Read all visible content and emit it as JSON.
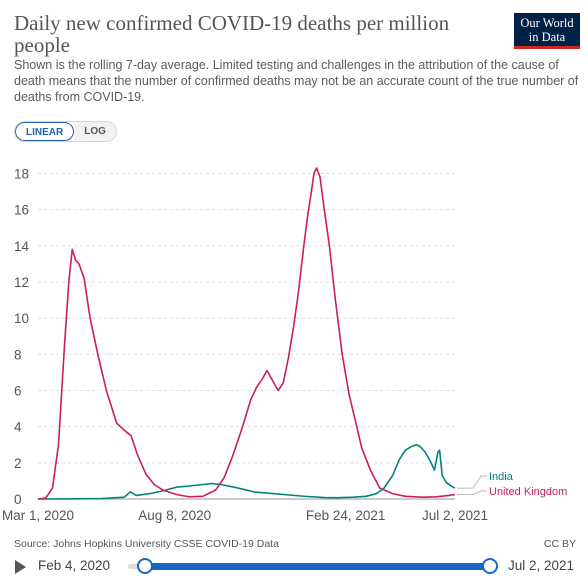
{
  "header": {
    "title": "Daily new confirmed COVID-19 deaths per million people",
    "subtitle": "Shown is the rolling 7-day average. Limited testing and challenges in the attribution of the cause of death means that the number of confirmed deaths may not be an accurate count of the true number of deaths from COVID-19.",
    "logo_line1": "Our World",
    "logo_line2": "in Data"
  },
  "scale_toggle": {
    "linear": "LINEAR",
    "log": "LOG",
    "selected": "LINEAR"
  },
  "footer": {
    "source": "Source: Johns Hopkins University CSSE COVID-19 Data",
    "license": "CC BY"
  },
  "timeline": {
    "start": "Feb 4, 2020",
    "end": "Jul 2, 2021"
  },
  "colors": {
    "india": "#00847e",
    "uk": "#c91f5c",
    "grid": "#dddddd"
  },
  "chart_data": {
    "type": "line",
    "title": "Daily new confirmed COVID-19 deaths per million people",
    "xlabel": "",
    "ylabel": "",
    "x_range": [
      "2020-03-01",
      "2021-07-02"
    ],
    "ylim": [
      0,
      18.5
    ],
    "y_ticks": [
      0,
      2,
      4,
      6,
      8,
      10,
      12,
      14,
      16,
      18
    ],
    "x_ticks": [
      {
        "date": "2020-03-01",
        "label": "Mar 1, 2020"
      },
      {
        "date": "2020-08-08",
        "label": "Aug 8, 2020"
      },
      {
        "date": "2021-02-24",
        "label": "Feb 24, 2021"
      },
      {
        "date": "2021-07-02",
        "label": "Jul 2, 2021"
      }
    ],
    "grid": "horizontal",
    "legend": "line-end labels",
    "series": [
      {
        "name": "India",
        "points": [
          [
            "2020-03-01",
            0
          ],
          [
            "2020-04-15",
            0.01
          ],
          [
            "2020-05-15",
            0.03
          ],
          [
            "2020-06-10",
            0.1
          ],
          [
            "2020-06-17",
            0.4
          ],
          [
            "2020-06-24",
            0.2
          ],
          [
            "2020-07-10",
            0.3
          ],
          [
            "2020-07-25",
            0.45
          ],
          [
            "2020-08-10",
            0.65
          ],
          [
            "2020-08-25",
            0.72
          ],
          [
            "2020-09-10",
            0.8
          ],
          [
            "2020-09-20",
            0.85
          ],
          [
            "2020-10-01",
            0.8
          ],
          [
            "2020-10-20",
            0.62
          ],
          [
            "2020-11-10",
            0.38
          ],
          [
            "2020-12-01",
            0.3
          ],
          [
            "2020-12-20",
            0.22
          ],
          [
            "2021-01-10",
            0.14
          ],
          [
            "2021-01-31",
            0.08
          ],
          [
            "2021-02-15",
            0.07
          ],
          [
            "2021-03-05",
            0.1
          ],
          [
            "2021-03-20",
            0.15
          ],
          [
            "2021-04-01",
            0.3
          ],
          [
            "2021-04-10",
            0.6
          ],
          [
            "2021-04-20",
            1.3
          ],
          [
            "2021-04-28",
            2.2
          ],
          [
            "2021-05-05",
            2.7
          ],
          [
            "2021-05-12",
            2.9
          ],
          [
            "2021-05-18",
            3.0
          ],
          [
            "2021-05-22",
            2.9
          ],
          [
            "2021-05-28",
            2.6
          ],
          [
            "2021-06-03",
            2.1
          ],
          [
            "2021-06-08",
            1.6
          ],
          [
            "2021-06-12",
            2.6
          ],
          [
            "2021-06-14",
            2.7
          ],
          [
            "2021-06-17",
            1.3
          ],
          [
            "2021-06-22",
            0.9
          ],
          [
            "2021-06-28",
            0.7
          ],
          [
            "2021-07-02",
            0.6
          ]
        ]
      },
      {
        "name": "United Kingdom",
        "points": [
          [
            "2020-03-01",
            0
          ],
          [
            "2020-03-10",
            0.05
          ],
          [
            "2020-03-18",
            0.6
          ],
          [
            "2020-03-25",
            3.0
          ],
          [
            "2020-04-01",
            8.5
          ],
          [
            "2020-04-06",
            12.0
          ],
          [
            "2020-04-10",
            13.8
          ],
          [
            "2020-04-14",
            13.2
          ],
          [
            "2020-04-18",
            13.0
          ],
          [
            "2020-04-24",
            12.2
          ],
          [
            "2020-05-01",
            10.0
          ],
          [
            "2020-05-10",
            8.0
          ],
          [
            "2020-05-20",
            6.0
          ],
          [
            "2020-06-01",
            4.2
          ],
          [
            "2020-06-10",
            3.8
          ],
          [
            "2020-06-18",
            3.5
          ],
          [
            "2020-06-25",
            2.5
          ],
          [
            "2020-07-05",
            1.4
          ],
          [
            "2020-07-15",
            0.8
          ],
          [
            "2020-07-25",
            0.5
          ],
          [
            "2020-08-10",
            0.25
          ],
          [
            "2020-08-25",
            0.12
          ],
          [
            "2020-09-10",
            0.15
          ],
          [
            "2020-09-25",
            0.5
          ],
          [
            "2020-10-05",
            1.2
          ],
          [
            "2020-10-15",
            2.4
          ],
          [
            "2020-10-25",
            3.8
          ],
          [
            "2020-11-05",
            5.5
          ],
          [
            "2020-11-12",
            6.2
          ],
          [
            "2020-11-18",
            6.6
          ],
          [
            "2020-11-24",
            7.1
          ],
          [
            "2020-11-30",
            6.6
          ],
          [
            "2020-12-07",
            6.0
          ],
          [
            "2020-12-13",
            6.4
          ],
          [
            "2020-12-19",
            7.8
          ],
          [
            "2020-12-25",
            9.5
          ],
          [
            "2020-12-31",
            11.5
          ],
          [
            "2021-01-06",
            14.0
          ],
          [
            "2021-01-11",
            15.8
          ],
          [
            "2021-01-15",
            17.0
          ],
          [
            "2021-01-18",
            18.0
          ],
          [
            "2021-01-21",
            18.3
          ],
          [
            "2021-01-25",
            17.8
          ],
          [
            "2021-01-30",
            16.0
          ],
          [
            "2021-02-05",
            14.0
          ],
          [
            "2021-02-12",
            11.0
          ],
          [
            "2021-02-20",
            8.0
          ],
          [
            "2021-02-28",
            5.8
          ],
          [
            "2021-03-08",
            4.2
          ],
          [
            "2021-03-15",
            2.8
          ],
          [
            "2021-03-25",
            1.6
          ],
          [
            "2021-04-05",
            0.6
          ],
          [
            "2021-04-20",
            0.3
          ],
          [
            "2021-05-05",
            0.15
          ],
          [
            "2021-05-25",
            0.1
          ],
          [
            "2021-06-10",
            0.12
          ],
          [
            "2021-06-25",
            0.2
          ],
          [
            "2021-07-02",
            0.25
          ]
        ]
      }
    ]
  }
}
